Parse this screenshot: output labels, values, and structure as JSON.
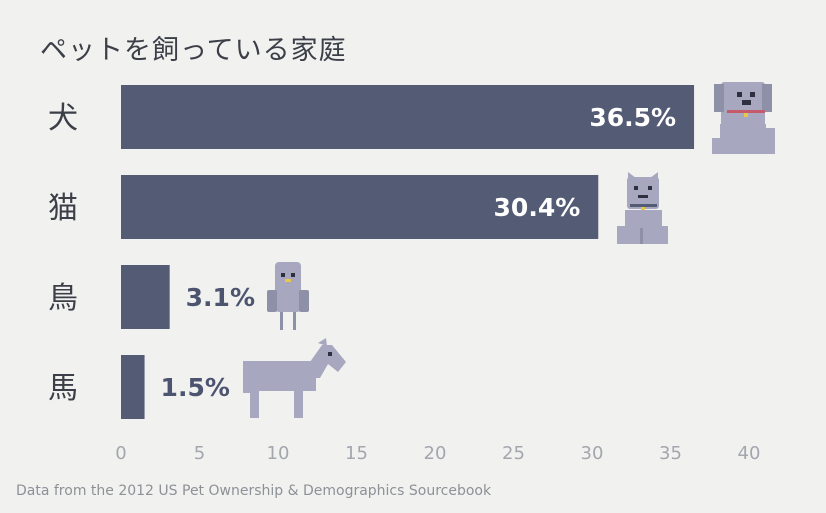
{
  "title": "ペットを飼っている家庭",
  "source": "Data from the 2012 US Pet Ownership & Demographics Sourcebook",
  "colors": {
    "bar": "#545b74",
    "animal": "#a7a8bf",
    "animal_dark": "#8e90a8",
    "background": "#f1f2f0"
  },
  "chart_data": {
    "type": "bar",
    "orientation": "horizontal",
    "title": "ペットを飼っている家庭",
    "categories": [
      "犬",
      "猫",
      "鳥",
      "馬"
    ],
    "values": [
      36.5,
      30.4,
      3.1,
      1.5
    ],
    "value_labels": [
      "36.5%",
      "30.4%",
      "3.1%",
      "1.5%"
    ],
    "xticks": [
      "0",
      "5",
      "10",
      "15",
      "20",
      "25",
      "30",
      "35",
      "40"
    ],
    "xlim": [
      0,
      40
    ],
    "grid": false,
    "legend": "none",
    "icons": [
      "dog-icon",
      "cat-icon",
      "bird-icon",
      "horse-icon"
    ]
  }
}
